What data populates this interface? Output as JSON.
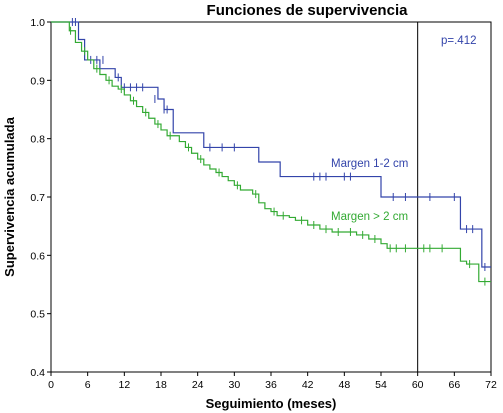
{
  "chart_data": {
    "type": "line",
    "step": true,
    "title": "Funciones de supervivencia",
    "xlabel": "Seguimiento (meses)",
    "ylabel": "Supervivencia acumulada",
    "xlim": [
      0,
      72
    ],
    "ylim": [
      0.4,
      1.0
    ],
    "xticks": [
      0,
      6,
      12,
      18,
      24,
      30,
      36,
      42,
      48,
      54,
      60,
      66,
      72
    ],
    "yticks": [
      0.4,
      0.5,
      0.6,
      0.7,
      0.8,
      0.9,
      1.0
    ],
    "grid": false,
    "reference_line": {
      "x": 60
    },
    "annotation": "p=.412",
    "series": [
      {
        "name": "Margen 1-2 cm",
        "color": "#3344aa",
        "x": [
          0,
          4.5,
          5.5,
          8,
          10.5,
          11.5,
          17.5,
          18.5,
          20,
          25,
          34,
          37.5,
          54,
          67,
          70.5,
          72
        ],
        "y": [
          1.0,
          0.97,
          0.935,
          0.92,
          0.905,
          0.888,
          0.868,
          0.85,
          0.81,
          0.785,
          0.76,
          0.735,
          0.7,
          0.645,
          0.58,
          0.58
        ],
        "censored": [
          [
            3.5,
            1.0
          ],
          [
            4,
            1.0
          ],
          [
            6.5,
            0.935
          ],
          [
            7.5,
            0.935
          ],
          [
            8.5,
            0.935
          ],
          [
            11,
            0.905
          ],
          [
            12,
            0.888
          ],
          [
            13,
            0.888
          ],
          [
            14,
            0.888
          ],
          [
            15,
            0.888
          ],
          [
            17,
            0.868
          ],
          [
            18.5,
            0.85
          ],
          [
            19,
            0.85
          ],
          [
            26,
            0.785
          ],
          [
            28,
            0.785
          ],
          [
            30,
            0.785
          ],
          [
            43,
            0.735
          ],
          [
            44,
            0.735
          ],
          [
            45,
            0.735
          ],
          [
            48,
            0.735
          ],
          [
            49,
            0.735
          ],
          [
            56,
            0.7
          ],
          [
            58,
            0.7
          ],
          [
            62,
            0.7
          ],
          [
            66,
            0.7
          ],
          [
            68,
            0.645
          ],
          [
            69,
            0.645
          ],
          [
            71,
            0.58
          ]
        ]
      },
      {
        "name": "Margen > 2 cm",
        "color": "#33aa33",
        "x": [
          0,
          3,
          4,
          5,
          6,
          7,
          8,
          9,
          10,
          11,
          12,
          13,
          14,
          15,
          16,
          17,
          18,
          19,
          21,
          22,
          23,
          24,
          25,
          26,
          27,
          28,
          29,
          30,
          31,
          33,
          34,
          35,
          36,
          37,
          39,
          40,
          42,
          44,
          46,
          50,
          52,
          54,
          55,
          60,
          63,
          67,
          68,
          70,
          72
        ],
        "y": [
          1.0,
          0.985,
          0.965,
          0.95,
          0.935,
          0.92,
          0.91,
          0.9,
          0.89,
          0.885,
          0.875,
          0.865,
          0.855,
          0.845,
          0.835,
          0.825,
          0.815,
          0.805,
          0.795,
          0.785,
          0.775,
          0.765,
          0.755,
          0.748,
          0.742,
          0.735,
          0.728,
          0.72,
          0.712,
          0.705,
          0.69,
          0.68,
          0.675,
          0.668,
          0.665,
          0.66,
          0.652,
          0.645,
          0.64,
          0.635,
          0.628,
          0.62,
          0.612,
          0.612,
          0.612,
          0.59,
          0.585,
          0.555,
          0.555
        ],
        "censored": [
          [
            3.2,
            0.985
          ],
          [
            5.5,
            0.95
          ],
          [
            7.5,
            0.92
          ],
          [
            9.5,
            0.9
          ],
          [
            11.5,
            0.885
          ],
          [
            13.5,
            0.865
          ],
          [
            15.5,
            0.845
          ],
          [
            17.5,
            0.825
          ],
          [
            19.5,
            0.805
          ],
          [
            22.5,
            0.785
          ],
          [
            24.5,
            0.765
          ],
          [
            27.5,
            0.742
          ],
          [
            30.5,
            0.72
          ],
          [
            33.5,
            0.705
          ],
          [
            36.5,
            0.675
          ],
          [
            38,
            0.668
          ],
          [
            41,
            0.66
          ],
          [
            43,
            0.652
          ],
          [
            45,
            0.645
          ],
          [
            47,
            0.64
          ],
          [
            49,
            0.64
          ],
          [
            51,
            0.635
          ],
          [
            53,
            0.628
          ],
          [
            55.5,
            0.612
          ],
          [
            56.5,
            0.612
          ],
          [
            58,
            0.612
          ],
          [
            61,
            0.612
          ],
          [
            62,
            0.612
          ],
          [
            64,
            0.612
          ],
          [
            68.5,
            0.585
          ],
          [
            71,
            0.555
          ]
        ]
      }
    ]
  }
}
